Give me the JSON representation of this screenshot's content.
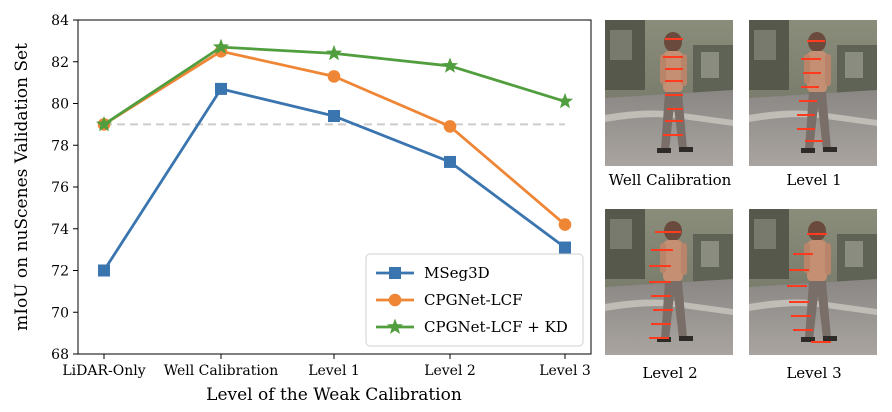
{
  "chart_data": {
    "type": "line",
    "xlabel": "Level of the Weak Calibration",
    "ylabel": "mIoU on nuScenes Validation Set",
    "categories": [
      "LiDAR-Only",
      "Well Calibration",
      "Level 1",
      "Level 2",
      "Level 3"
    ],
    "ylim": [
      68,
      84
    ],
    "yticks": [
      "68",
      "70",
      "72",
      "74",
      "76",
      "78",
      "80",
      "82",
      "84"
    ],
    "reference_line": 79.0,
    "grid": false,
    "legend_position": "lower-right",
    "series": [
      {
        "name": "MSeg3D",
        "marker": "square",
        "color": "#3a75b0",
        "values": [
          72.0,
          80.7,
          79.4,
          77.2,
          73.1
        ]
      },
      {
        "name": "CPGNet-LCF",
        "marker": "circle",
        "color": "#ef8636",
        "values": [
          79.0,
          82.5,
          81.3,
          78.9,
          74.2
        ]
      },
      {
        "name": "CPGNet-LCF + KD",
        "marker": "star",
        "color": "#519e3e",
        "values": [
          79.0,
          82.7,
          82.4,
          81.8,
          80.1
        ]
      }
    ]
  },
  "images": [
    {
      "caption": "Well Calibration"
    },
    {
      "caption": "Level 1"
    },
    {
      "caption": "Level 2"
    },
    {
      "caption": "Level 3"
    }
  ]
}
